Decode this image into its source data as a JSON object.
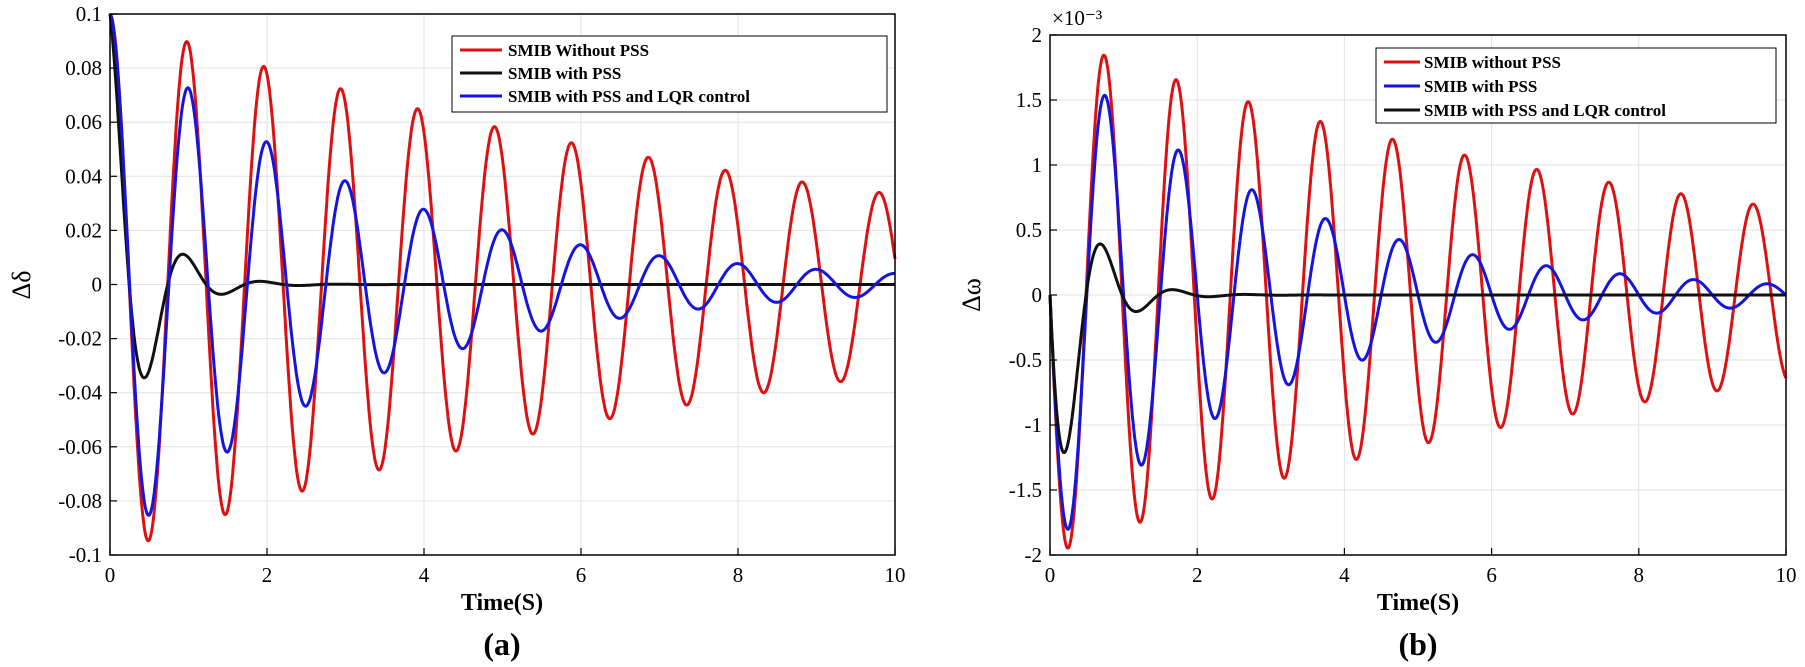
{
  "chart_data": [
    {
      "type": "line",
      "panel_label": "(a)",
      "xlabel": "Time(S)",
      "ylabel": "Δδ",
      "xlim": [
        0,
        10
      ],
      "ylim": [
        -0.1,
        0.1
      ],
      "xticks": [
        0,
        2,
        4,
        6,
        8,
        10
      ],
      "xtick_labels": [
        "0",
        "2",
        "4",
        "6",
        "8",
        "10"
      ],
      "yticks": [
        -0.1,
        -0.08,
        -0.06,
        -0.04,
        -0.02,
        0,
        0.02,
        0.04,
        0.06,
        0.08,
        0.1
      ],
      "ytick_labels": [
        "-0.1",
        "-0.08",
        "-0.06",
        "-0.04",
        "-0.02",
        "0",
        "0.02",
        "0.04",
        "0.06",
        "0.08",
        "0.1"
      ],
      "grid": true,
      "legend_position": "top-right",
      "series": [
        {
          "name": "SMIB Without PSS",
          "color": "#dd1111",
          "model": {
            "A": 0.1,
            "decay": 0.11,
            "period": 0.98,
            "y0": 0.1
          }
        },
        {
          "name": "SMIB with PSS",
          "color": "#111111",
          "model": {
            "A": 0.1,
            "decay": 2.3,
            "period": 0.98,
            "y0": 0.1
          }
        },
        {
          "name": "SMIB with PSS and LQR control",
          "color": "#1515dd",
          "model": {
            "A": 0.1,
            "decay": 0.32,
            "period": 1.0,
            "y0": 0.1
          }
        }
      ]
    },
    {
      "type": "line",
      "panel_label": "(b)",
      "xlabel": "Time(S)",
      "ylabel": "Δω",
      "y_multiplier": "×10⁻³",
      "xlim": [
        0,
        10
      ],
      "ylim": [
        -2,
        2
      ],
      "xticks": [
        0,
        2,
        4,
        6,
        8,
        10
      ],
      "xtick_labels": [
        "0",
        "2",
        "4",
        "6",
        "8",
        "10"
      ],
      "yticks": [
        -2,
        -1.5,
        -1,
        -0.5,
        0,
        0.5,
        1,
        1.5,
        2
      ],
      "ytick_labels": [
        "-2",
        "-1.5",
        "-1",
        "-0.5",
        "0",
        "0.5",
        "1",
        "1.5",
        "2"
      ],
      "grid": true,
      "legend_position": "top-right",
      "series": [
        {
          "name": "SMIB without PSS",
          "color": "#dd1111",
          "model": {
            "A": -2.0,
            "decay": 0.11,
            "period": 0.98,
            "y0": 0
          }
        },
        {
          "name": "SMIB with PSS",
          "color": "#1515dd",
          "model": {
            "A": -1.95,
            "decay": 0.32,
            "period": 1.0,
            "y0": 0
          }
        },
        {
          "name": "SMIB with PSS and LQR control",
          "color": "#111111",
          "model": {
            "A": -2.0,
            "decay": 2.3,
            "period": 0.98,
            "y0": 0
          }
        }
      ]
    }
  ]
}
